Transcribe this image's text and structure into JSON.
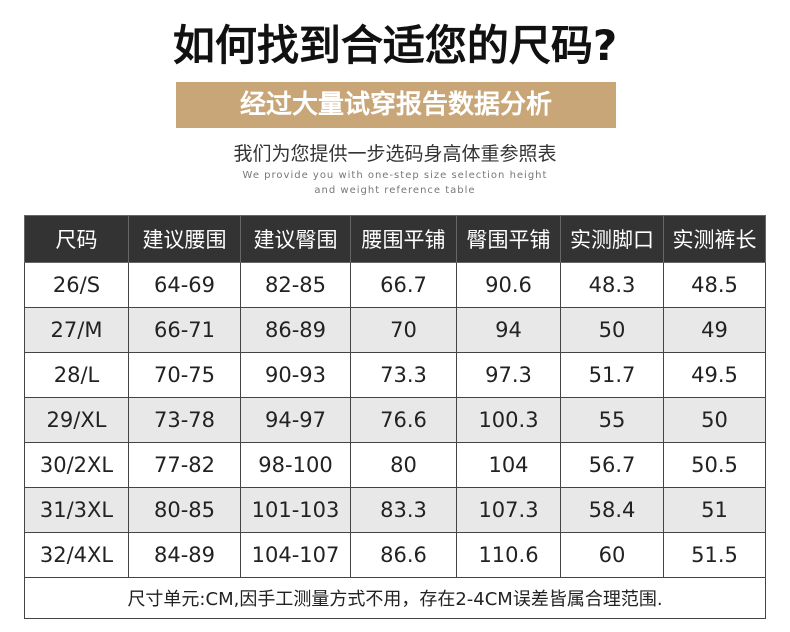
{
  "header": {
    "title": "如何找到合适您的尺码?",
    "banner": "经过大量试穿报告数据分析",
    "subtitle": "我们为您提供一步选码身高体重参照表",
    "english_line1": "We provide you with one-step size selection height",
    "english_line2": "and weight reference table"
  },
  "table": {
    "columns": [
      "尺码",
      "建议腰围",
      "建议臀围",
      "腰围平铺",
      "臀围平铺",
      "实测脚口",
      "实测裤长"
    ],
    "rows": [
      [
        "26/S",
        "64-69",
        "82-85",
        "66.7",
        "90.6",
        "48.3",
        "48.5"
      ],
      [
        "27/M",
        "66-71",
        "86-89",
        "70",
        "94",
        "50",
        "49"
      ],
      [
        "28/L",
        "70-75",
        "90-93",
        "73.3",
        "97.3",
        "51.7",
        "49.5"
      ],
      [
        "29/XL",
        "73-78",
        "94-97",
        "76.6",
        "100.3",
        "55",
        "50"
      ],
      [
        "30/2XL",
        "77-82",
        "98-100",
        "80",
        "104",
        "56.7",
        "50.5"
      ],
      [
        "31/3XL",
        "80-85",
        "101-103",
        "83.3",
        "107.3",
        "58.4",
        "51"
      ],
      [
        "32/4XL",
        "84-89",
        "104-107",
        "86.6",
        "110.6",
        "60",
        "51.5"
      ]
    ],
    "note": "尺寸单元:CM,因手工测量方式不用，存在2-4CM误差皆属合理范围."
  }
}
